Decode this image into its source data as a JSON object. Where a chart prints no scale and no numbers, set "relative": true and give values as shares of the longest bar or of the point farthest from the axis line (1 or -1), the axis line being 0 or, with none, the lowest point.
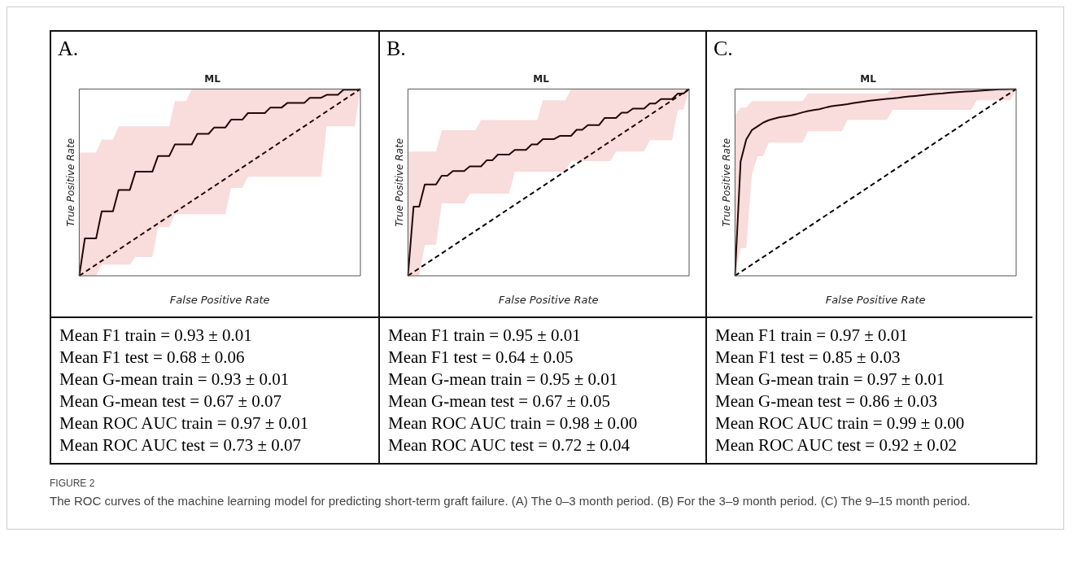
{
  "chart_data": [
    {
      "type": "line",
      "title": "ML",
      "xlabel": "False Positive Rate",
      "ylabel": "True Positive Rate",
      "relative": true,
      "grid": false,
      "legend": false,
      "marker": "none",
      "categories": [
        null,
        null,
        null,
        null,
        null,
        null,
        null,
        null,
        null,
        null,
        null,
        null,
        null,
        null,
        null,
        null,
        null,
        null,
        null,
        null,
        null,
        null,
        null,
        null,
        null,
        null,
        null,
        null,
        null,
        null,
        null,
        null,
        null,
        null,
        null,
        null,
        null,
        null,
        null,
        null,
        null,
        null,
        null,
        null,
        null,
        null,
        null,
        null,
        null,
        null,
        null
      ],
      "annotations": [
        "A.",
        "Mean F1 train = 0.93 ± 0.01",
        "Mean F1 test = 0.68 ± 0.06",
        "Mean G-mean train = 0.93 ± 0.01",
        "Mean G-mean test = 0.67 ± 0.07",
        "Mean ROC AUC train = 0.97 ± 0.01",
        "Mean ROC AUC test = 0.73 ± 0.07"
      ],
      "series": [
        {
          "color": "#000000",
          "line_style": "solid",
          "values": [
            0,
            0.2,
            0.2,
            0.2,
            0.345,
            0.345,
            0.345,
            0.46,
            0.46,
            0.46,
            0.557,
            0.557,
            0.557,
            0.557,
            0.641,
            0.641,
            0.641,
            0.703,
            0.703,
            0.703,
            0.703,
            0.76,
            0.76,
            0.76,
            0.794,
            0.794,
            0.794,
            0.836,
            0.836,
            0.836,
            0.871,
            0.871,
            0.871,
            0.871,
            0.901,
            0.901,
            0.901,
            0.925,
            0.925,
            0.925,
            0.925,
            0.953,
            0.953,
            0.953,
            0.969,
            0.969,
            0.969,
            0.996,
            0.996,
            0.996,
            1
          ],
          "lower": [
            0,
            0,
            0,
            0,
            0.06,
            0.06,
            0.06,
            0.06,
            0.06,
            0.06,
            0.1,
            0.1,
            0.1,
            0.1,
            0.26,
            0.26,
            0.26,
            0.33,
            0.33,
            0.33,
            0.33,
            0.33,
            0.33,
            0.33,
            0.33,
            0.33,
            0.33,
            0.47,
            0.47,
            0.47,
            0.53,
            0.53,
            0.53,
            0.53,
            0.53,
            0.53,
            0.53,
            0.53,
            0.53,
            0.53,
            0.53,
            0.53,
            0.53,
            0.53,
            0.8,
            0.8,
            0.8,
            0.8,
            0.8,
            0.8,
            1
          ],
          "upper": [
            0.66,
            0.66,
            0.66,
            0.66,
            0.73,
            0.73,
            0.73,
            0.8,
            0.8,
            0.8,
            0.8,
            0.8,
            0.8,
            0.8,
            0.8,
            0.8,
            0.8,
            0.935,
            0.935,
            0.935,
            1,
            1,
            1,
            1,
            1,
            1,
            1,
            1,
            1,
            1,
            1,
            1,
            1,
            1,
            1,
            1,
            1,
            1,
            1,
            1,
            1,
            1,
            1,
            1,
            1,
            1,
            1,
            1,
            1,
            1,
            1
          ]
        },
        {
          "color": "#000000",
          "line_style": "dashed",
          "values": [
            0,
            0.02,
            0.04,
            0.06,
            0.08,
            0.1,
            0.12,
            0.14,
            0.16,
            0.18,
            0.2,
            0.22,
            0.24,
            0.26,
            0.28,
            0.3,
            0.32,
            0.34,
            0.36,
            0.38,
            0.4,
            0.42,
            0.44,
            0.46,
            0.48,
            0.5,
            0.52,
            0.54,
            0.56,
            0.58,
            0.6,
            0.62,
            0.64,
            0.66,
            0.68,
            0.7,
            0.72,
            0.74,
            0.76,
            0.78,
            0.8,
            0.82,
            0.84,
            0.86,
            0.88,
            0.9,
            0.92,
            0.94,
            0.96,
            0.98,
            1
          ]
        }
      ]
    },
    {
      "type": "line",
      "title": "ML",
      "xlabel": "False Positive Rate",
      "ylabel": "True Positive Rate",
      "relative": true,
      "grid": false,
      "legend": false,
      "marker": "none",
      "categories": [
        null,
        null,
        null,
        null,
        null,
        null,
        null,
        null,
        null,
        null,
        null,
        null,
        null,
        null,
        null,
        null,
        null,
        null,
        null,
        null,
        null,
        null,
        null,
        null,
        null,
        null,
        null,
        null,
        null,
        null,
        null,
        null,
        null,
        null,
        null,
        null,
        null,
        null,
        null,
        null,
        null,
        null,
        null,
        null,
        null,
        null,
        null,
        null,
        null,
        null,
        null
      ],
      "annotations": [
        "B.",
        "Mean F1 train = 0.95 ± 0.01",
        "Mean F1 test = 0.64 ± 0.05",
        "Mean G-mean train = 0.95 ± 0.01",
        "Mean G-mean test = 0.67 ± 0.05",
        "Mean ROC AUC train = 0.98 ± 0.00",
        "Mean ROC AUC test = 0.72 ± 0.04"
      ],
      "series": [
        {
          "color": "#000000",
          "line_style": "solid",
          "values": [
            0,
            0.37,
            0.37,
            0.489,
            0.489,
            0.489,
            0.536,
            0.536,
            0.561,
            0.561,
            0.561,
            0.586,
            0.586,
            0.586,
            0.618,
            0.618,
            0.649,
            0.649,
            0.649,
            0.674,
            0.674,
            0.674,
            0.703,
            0.703,
            0.732,
            0.732,
            0.732,
            0.749,
            0.749,
            0.749,
            0.782,
            0.782,
            0.807,
            0.807,
            0.807,
            0.845,
            0.845,
            0.845,
            0.873,
            0.873,
            0.895,
            0.895,
            0.895,
            0.922,
            0.922,
            0.946,
            0.946,
            0.946,
            0.976,
            0.976,
            1
          ],
          "lower": [
            0,
            0,
            0,
            0.165,
            0.165,
            0.165,
            0.388,
            0.388,
            0.388,
            0.388,
            0.388,
            0.44,
            0.44,
            0.44,
            0.44,
            0.44,
            0.44,
            0.44,
            0.44,
            0.557,
            0.557,
            0.557,
            0.557,
            0.557,
            0.557,
            0.557,
            0.557,
            0.557,
            0.557,
            0.614,
            0.614,
            0.614,
            0.614,
            0.614,
            0.614,
            0.614,
            0.614,
            0.665,
            0.665,
            0.665,
            0.665,
            0.665,
            0.665,
            0.726,
            0.726,
            0.726,
            0.726,
            0.726,
            0.89,
            0.89,
            1
          ],
          "upper": [
            0.665,
            0.665,
            0.665,
            0.665,
            0.665,
            0.665,
            0.78,
            0.78,
            0.78,
            0.78,
            0.78,
            0.78,
            0.78,
            0.834,
            0.834,
            0.834,
            0.834,
            0.834,
            0.834,
            0.834,
            0.834,
            0.834,
            0.834,
            0.834,
            0.94,
            0.94,
            0.94,
            0.94,
            0.94,
            1,
            1,
            1,
            1,
            1,
            1,
            1,
            1,
            1,
            1,
            1,
            1,
            1,
            1,
            1,
            1,
            1,
            1,
            1,
            1,
            1,
            1
          ]
        },
        {
          "color": "#000000",
          "line_style": "dashed",
          "values": [
            0,
            0.02,
            0.04,
            0.06,
            0.08,
            0.1,
            0.12,
            0.14,
            0.16,
            0.18,
            0.2,
            0.22,
            0.24,
            0.26,
            0.28,
            0.3,
            0.32,
            0.34,
            0.36,
            0.38,
            0.4,
            0.42,
            0.44,
            0.46,
            0.48,
            0.5,
            0.52,
            0.54,
            0.56,
            0.58,
            0.6,
            0.62,
            0.64,
            0.66,
            0.68,
            0.7,
            0.72,
            0.74,
            0.76,
            0.78,
            0.8,
            0.82,
            0.84,
            0.86,
            0.88,
            0.9,
            0.92,
            0.94,
            0.96,
            0.98,
            1
          ]
        }
      ]
    },
    {
      "type": "line",
      "title": "ML",
      "xlabel": "False Positive Rate",
      "ylabel": "True Positive Rate",
      "relative": true,
      "grid": false,
      "legend": false,
      "marker": "none",
      "categories": [
        null,
        null,
        null,
        null,
        null,
        null,
        null,
        null,
        null,
        null,
        null,
        null,
        null,
        null,
        null,
        null,
        null,
        null,
        null,
        null,
        null,
        null,
        null,
        null,
        null,
        null,
        null,
        null,
        null,
        null,
        null,
        null,
        null,
        null,
        null,
        null,
        null,
        null,
        null,
        null,
        null,
        null,
        null,
        null,
        null,
        null,
        null,
        null,
        null,
        null,
        null
      ],
      "annotations": [
        "C.",
        "Mean F1 train = 0.97 ± 0.01",
        "Mean F1 test = 0.85 ± 0.03",
        "Mean G-mean train = 0.97 ± 0.01",
        "Mean G-mean test = 0.86 ± 0.03",
        "Mean ROC AUC train = 0.99 ± 0.00",
        "Mean ROC AUC test = 0.92 ± 0.02",
        "FIGURE 2",
        "The ROC curves of the machine learning model for predicting short-term graft failure. (A) The 0–3 month period. (B) For the 3–9 month period. (C) The 9–15 month period."
      ],
      "series": [
        {
          "color": "#000000",
          "line_style": "solid",
          "values": [
            0,
            0.612,
            0.73,
            0.78,
            0.8,
            0.82,
            0.833,
            0.842,
            0.849,
            0.854,
            0.859,
            0.866,
            0.875,
            0.882,
            0.887,
            0.892,
            0.9,
            0.907,
            0.911,
            0.915,
            0.919,
            0.924,
            0.929,
            0.933,
            0.937,
            0.941,
            0.944,
            0.947,
            0.95,
            0.953,
            0.957,
            0.96,
            0.963,
            0.966,
            0.969,
            0.972,
            0.975,
            0.977,
            0.98,
            0.982,
            0.984,
            0.986,
            0.988,
            0.99,
            0.992,
            0.994,
            0.996,
            0.998,
            0.999,
            1,
            1
          ],
          "lower": [
            0,
            0.148,
            0.148,
            0.54,
            0.64,
            0.64,
            0.713,
            0.713,
            0.713,
            0.713,
            0.713,
            0.713,
            0.713,
            0.774,
            0.774,
            0.774,
            0.774,
            0.774,
            0.774,
            0.774,
            0.834,
            0.834,
            0.834,
            0.834,
            0.834,
            0.834,
            0.834,
            0.834,
            0.888,
            0.888,
            0.888,
            0.888,
            0.888,
            0.888,
            0.888,
            0.888,
            0.888,
            0.888,
            0.888,
            0.888,
            0.888,
            0.888,
            0.888,
            0.94,
            0.94,
            0.94,
            0.94,
            0.94,
            0.94,
            0.94,
            1
          ],
          "upper": [
            0.86,
            0.9,
            0.9,
            0.935,
            0.935,
            0.935,
            0.935,
            0.935,
            0.935,
            0.935,
            0.935,
            0.935,
            0.935,
            0.976,
            0.976,
            0.976,
            0.976,
            0.976,
            0.976,
            0.976,
            0.976,
            0.976,
            0.976,
            0.976,
            0.976,
            0.976,
            0.976,
            0.976,
            1,
            1,
            1,
            1,
            1,
            1,
            1,
            1,
            1,
            1,
            1,
            1,
            1,
            1,
            1,
            1,
            1,
            1,
            1,
            1,
            1,
            1,
            1
          ]
        },
        {
          "color": "#000000",
          "line_style": "dashed",
          "values": [
            0,
            0.02,
            0.04,
            0.06,
            0.08,
            0.1,
            0.12,
            0.14,
            0.16,
            0.18,
            0.2,
            0.22,
            0.24,
            0.26,
            0.28,
            0.3,
            0.32,
            0.34,
            0.36,
            0.38,
            0.4,
            0.42,
            0.44,
            0.46,
            0.48,
            0.5,
            0.52,
            0.54,
            0.56,
            0.58,
            0.6,
            0.62,
            0.64,
            0.66,
            0.68,
            0.7,
            0.72,
            0.74,
            0.76,
            0.78,
            0.8,
            0.82,
            0.84,
            0.86,
            0.88,
            0.9,
            0.92,
            0.94,
            0.96,
            0.98,
            1
          ]
        }
      ]
    }
  ]
}
